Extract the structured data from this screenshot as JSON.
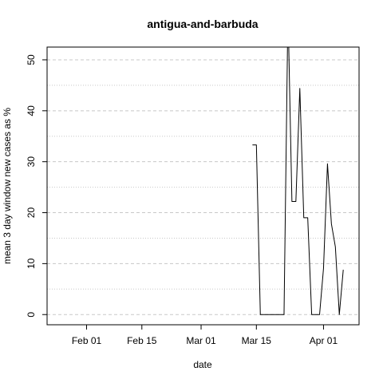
{
  "chart_data": {
    "type": "line",
    "title": "antigua-and-barbuda",
    "xlabel": "date",
    "ylabel": "mean  3  day window new cases as %",
    "x_ticks": [
      "Feb 01",
      "Feb 15",
      "Mar 01",
      "Mar 15",
      "Apr 01"
    ],
    "y_ticks": [
      "0",
      "10",
      "20",
      "30",
      "40",
      "50"
    ],
    "xlim": [
      "2020-01-22",
      "2020-04-10"
    ],
    "ylim": [
      -2,
      52.5
    ],
    "grid": true,
    "series": [
      {
        "x": [
          "2020-03-14",
          "2020-03-15",
          "2020-03-16",
          "2020-03-17",
          "2020-03-18",
          "2020-03-19",
          "2020-03-20",
          "2020-03-21",
          "2020-03-22",
          "2020-03-23",
          "2020-03-24",
          "2020-03-25",
          "2020-03-26",
          "2020-03-27",
          "2020-03-28",
          "2020-03-29",
          "2020-03-30",
          "2020-03-31",
          "2020-04-01",
          "2020-04-02",
          "2020-04-03",
          "2020-04-04",
          "2020-04-05",
          "2020-04-06"
        ],
        "values": [
          33.3,
          33.3,
          0,
          0,
          0,
          0,
          0,
          0,
          0,
          60,
          22.2,
          22.2,
          44.4,
          19.0,
          19.0,
          0,
          0,
          0,
          9.1,
          29.6,
          17.8,
          13.3,
          0,
          8.8
        ],
        "color": "#000000"
      }
    ]
  }
}
